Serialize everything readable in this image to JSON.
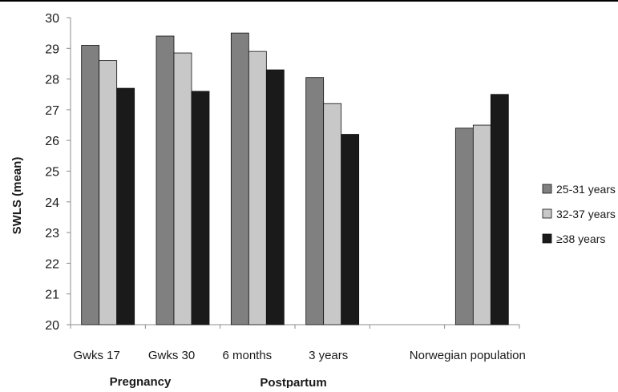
{
  "chart_data": {
    "type": "bar",
    "categories": [
      "Gwks 17",
      "Gwks 30",
      "6 months",
      "3 years",
      "",
      "Norwegian population"
    ],
    "group_labels": [
      "Pregnancy",
      "Postpartum"
    ],
    "series": [
      {
        "name": "25-31 years",
        "color": "#808080",
        "values": [
          29.1,
          29.4,
          29.5,
          28.05,
          null,
          26.4
        ]
      },
      {
        "name": "32-37 years",
        "color": "#c8c8c8",
        "values": [
          28.6,
          28.85,
          28.9,
          27.2,
          null,
          26.5
        ]
      },
      {
        "name": "≥38 years",
        "color": "#1a1a1a",
        "values": [
          27.7,
          27.6,
          28.3,
          26.2,
          null,
          27.5
        ]
      }
    ],
    "ylabel": "SWLS (mean)",
    "xlabel": "",
    "ylim": [
      20,
      30
    ],
    "yticks": [
      "20",
      "21",
      "22",
      "23",
      "24",
      "25",
      "26",
      "27",
      "28",
      "29",
      "30"
    ],
    "grid": false,
    "legend_position": "right"
  }
}
